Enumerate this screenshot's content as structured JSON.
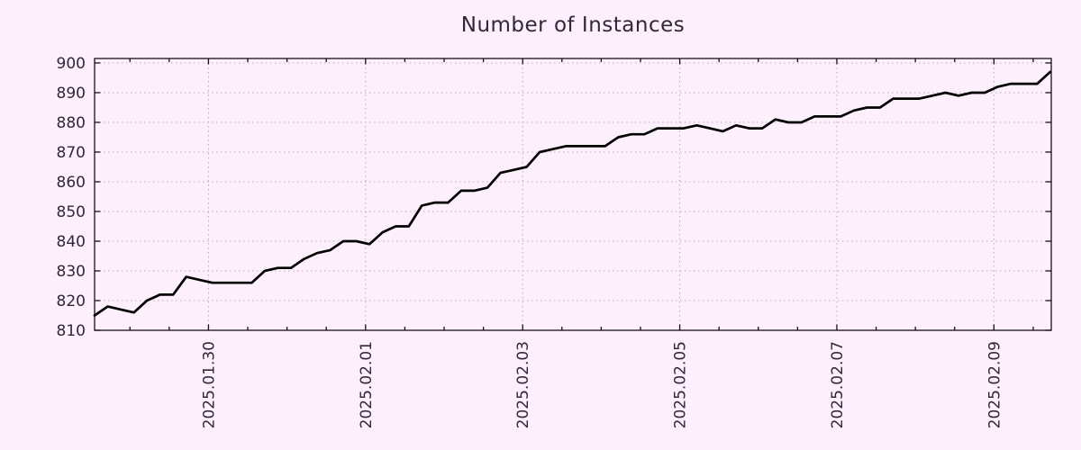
{
  "chart_data": {
    "type": "line",
    "title": "Number of Instances",
    "background_color": "#fdeffb",
    "text_color": "#2e2837",
    "axis_color": "#15101a",
    "grid_color": "#b6aeb8",
    "line_color": "#000000",
    "x_axis": {
      "unit": "date",
      "range_days": [
        0,
        12.18
      ],
      "major_ticks": [
        {
          "t": 1.45,
          "label": "2025.01.30"
        },
        {
          "t": 3.45,
          "label": "2025.02.01"
        },
        {
          "t": 5.45,
          "label": "2025.02.03"
        },
        {
          "t": 7.45,
          "label": "2025.02.05"
        },
        {
          "t": 9.45,
          "label": "2025.02.07"
        },
        {
          "t": 11.45,
          "label": "2025.02.09"
        }
      ],
      "minor_tick_start": 0.45,
      "minor_tick_step": 0.5,
      "label_rotation_deg": -90
    },
    "y_axis": {
      "range": [
        810,
        901.5
      ],
      "tick_values": [
        810,
        820,
        830,
        840,
        850,
        860,
        870,
        880,
        890,
        900
      ],
      "tick_labels": [
        "810",
        "820",
        "830",
        "840",
        "850",
        "860",
        "870",
        "880",
        "890",
        "900"
      ]
    },
    "grid": {
      "horizontal": true,
      "vertical": true,
      "style": "dotted"
    },
    "legend": "none",
    "series": [
      {
        "name": "instances",
        "t0_days": 0,
        "t_step_days": 0.1666667,
        "values": [
          815,
          818,
          817,
          816,
          820,
          822,
          822,
          828,
          827,
          826,
          826,
          826,
          826,
          830,
          831,
          831,
          834,
          836,
          837,
          840,
          840,
          839,
          843,
          845,
          845,
          852,
          853,
          853,
          857,
          857,
          858,
          863,
          864,
          865,
          870,
          871,
          872,
          872,
          872,
          872,
          875,
          876,
          876,
          878,
          878,
          878,
          879,
          878,
          877,
          879,
          878,
          878,
          881,
          880,
          880,
          882,
          882,
          882,
          884,
          885,
          885,
          888,
          888,
          888,
          889,
          890,
          889,
          890,
          890,
          892,
          893,
          893,
          893,
          897
        ]
      }
    ]
  }
}
